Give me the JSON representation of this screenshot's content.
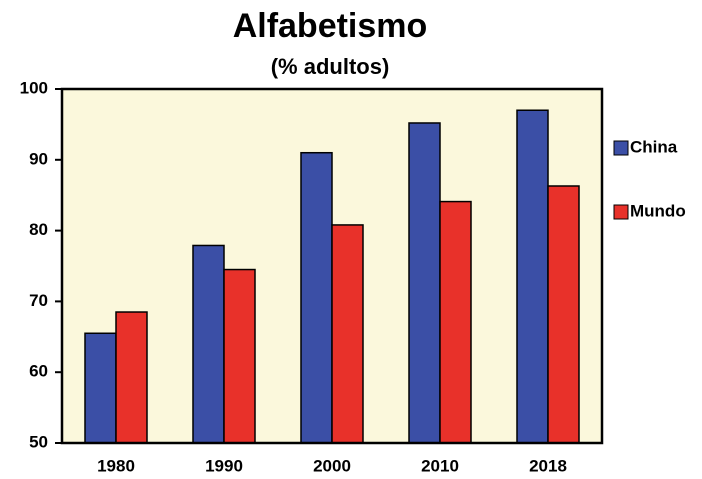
{
  "chart_data": {
    "type": "bar",
    "title": "Alfabetismo",
    "subtitle": "(% adultos)",
    "categories": [
      "1980",
      "1990",
      "2000",
      "2010",
      "2018"
    ],
    "series": [
      {
        "name": "China",
        "color": "#3b4fa6",
        "values": [
          65.5,
          77.9,
          91,
          95.2,
          97
        ]
      },
      {
        "name": "Mundo",
        "color": "#e8312a",
        "values": [
          68.5,
          74.5,
          80.8,
          84.1,
          86.3
        ]
      }
    ],
    "ylim": [
      50,
      100
    ],
    "yticks": [
      50,
      60,
      70,
      80,
      90,
      100
    ],
    "grid": false,
    "legend": "right"
  }
}
